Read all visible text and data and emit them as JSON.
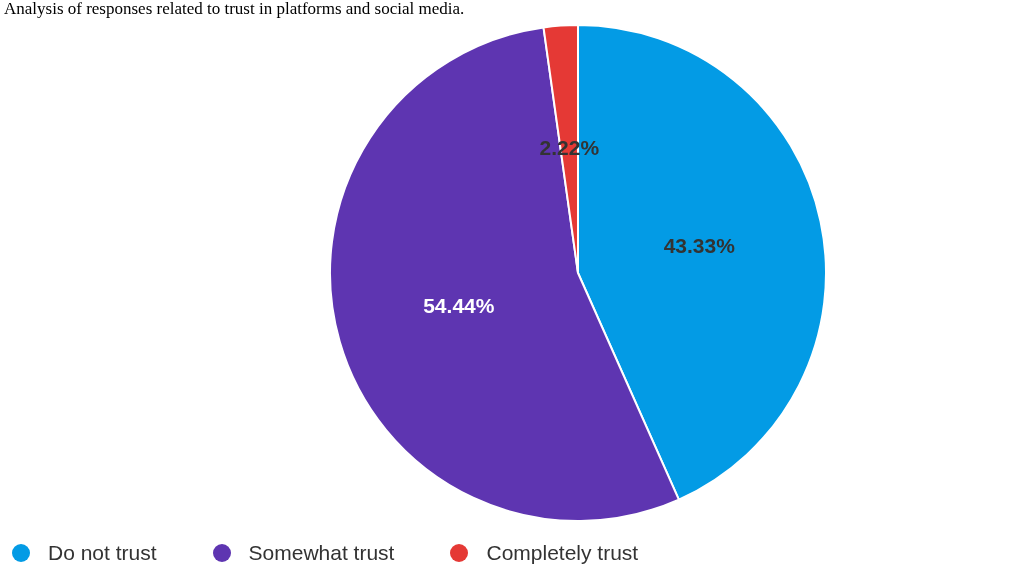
{
  "chart_data": {
    "type": "pie",
    "title": "Analysis of responses related to trust in platforms and social media.",
    "categories": [
      "Do not trust",
      "Somewhat trust",
      "Completely trust"
    ],
    "values": [
      43.33,
      54.44,
      2.22
    ],
    "colors": [
      "#039be5",
      "#5e35b1",
      "#e53935"
    ],
    "value_labels": [
      "43.33%",
      "54.44%",
      "2.22%"
    ],
    "legend": "bottom left"
  }
}
